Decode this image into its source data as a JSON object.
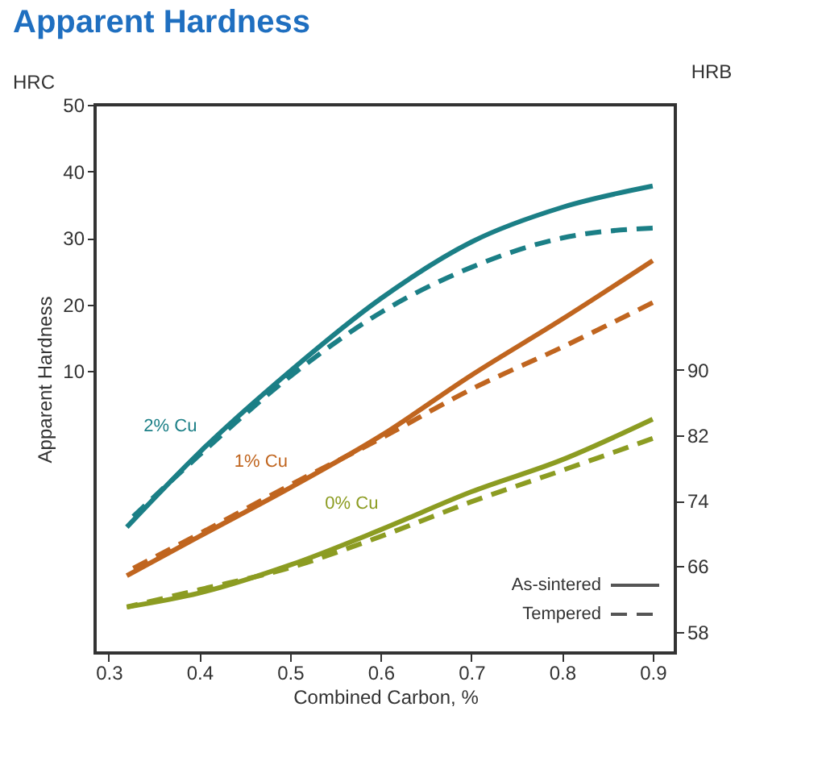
{
  "chart_data": {
    "type": "line",
    "title": "Apparent Hardness",
    "xlabel": "Combined Carbon, %",
    "ylabel": "Apparent Hardness",
    "y2label": "HRB",
    "x": [
      0.32,
      0.4,
      0.5,
      0.6,
      0.7,
      0.8,
      0.9
    ],
    "series": [
      {
        "name": "2% Cu",
        "color": "#1b7f86",
        "line_style": "solid",
        "values": [
          -13.4,
          -2.2,
          10,
          20.9,
          29.4,
          34.6,
          37.8
        ]
      },
      {
        "color": "#1b7f86",
        "line_style": "dashed",
        "values": [
          -12.7,
          -2.6,
          9.2,
          18.8,
          25.6,
          30,
          31.5
        ]
      },
      {
        "name": "1% Cu",
        "color": "#c0651f",
        "line_style": "solid",
        "values": [
          -20.7,
          -14.8,
          -7.5,
          0.3,
          9.4,
          17.8,
          26.6
        ]
      },
      {
        "color": "#c0651f",
        "line_style": "dashed",
        "values": [
          -20.1,
          -14.4,
          -7.1,
          -0.1,
          7.3,
          13.6,
          20.3
        ]
      },
      {
        "name": "0% Cu",
        "color": "#8c9c22",
        "line_style": "solid",
        "values": [
          -25.4,
          -23.3,
          -19.1,
          -13.8,
          -8.1,
          -3.3,
          2.8
        ]
      },
      {
        "color": "#8c9c22",
        "line_style": "dashed",
        "values": [
          -25.4,
          -22.8,
          -19.5,
          -14.8,
          -9.6,
          -4.9,
          -0.1
        ]
      }
    ],
    "xlim": [
      0.285,
      0.925
    ],
    "xticks": [
      0.3,
      0.4,
      0.5,
      0.6,
      0.7,
      0.8,
      0.9
    ],
    "ylim": [
      -32.3,
      50
    ],
    "yticks": [
      10,
      20,
      30,
      40,
      50
    ],
    "y2lim": [
      55.4,
      122.4
    ],
    "y2ticks": [
      58,
      66,
      74,
      82,
      90
    ],
    "annotations": [
      "HRC",
      "As-sintered",
      "Tempered"
    ],
    "grid": false,
    "marker": "none"
  }
}
